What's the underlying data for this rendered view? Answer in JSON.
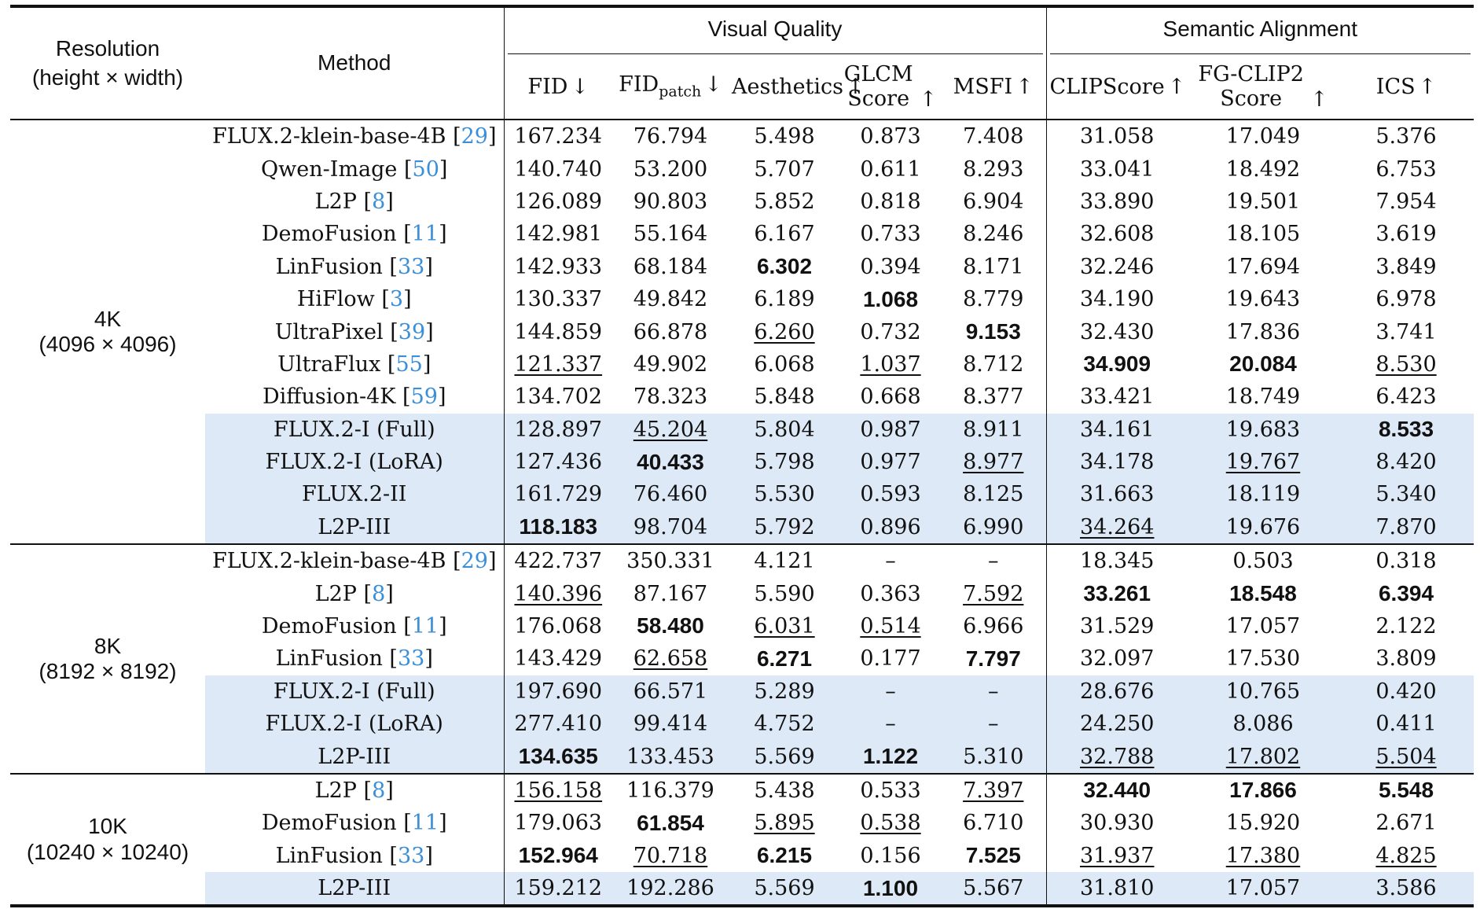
{
  "header": {
    "resolution_line1": "Resolution",
    "resolution_line2": "(height × width)",
    "method": "Method",
    "group_visual": "Visual Quality",
    "group_semantic": "Semantic Alignment",
    "columns": [
      {
        "pre": "FID",
        "sub": "",
        "arrow": "↓"
      },
      {
        "pre": "FID",
        "sub": "patch",
        "arrow": "↓"
      },
      {
        "pre": "Aesthetics",
        "sub": "",
        "arrow": "↑"
      },
      {
        "pre": "GLCM",
        "line2": "Score",
        "arrow": "↑"
      },
      {
        "pre": "MSFI",
        "sub": "",
        "arrow": "↑"
      },
      {
        "pre": "CLIPScore",
        "sub": "",
        "arrow": "↑"
      },
      {
        "pre": "FG-CLIP2",
        "line2": "Score",
        "arrow": "↑"
      },
      {
        "pre": "ICS",
        "sub": "",
        "arrow": "↑"
      }
    ]
  },
  "groups": [
    {
      "res_line1": "4K",
      "res_line2": "(4096 × 4096)",
      "rows": [
        {
          "method": "FLUX.2-klein-base-4B",
          "ref": "29",
          "hl": false,
          "vals": [
            "167.234",
            "76.794",
            "5.498",
            "0.873",
            "7.408",
            "31.058",
            "17.049",
            "5.376"
          ],
          "fmt": [
            "",
            "",
            "",
            "",
            "",
            "",
            "",
            ""
          ]
        },
        {
          "method": "Qwen-Image",
          "ref": "50",
          "hl": false,
          "vals": [
            "140.740",
            "53.200",
            "5.707",
            "0.611",
            "8.293",
            "33.041",
            "18.492",
            "6.753"
          ],
          "fmt": [
            "",
            "",
            "",
            "",
            "",
            "",
            "",
            ""
          ]
        },
        {
          "method": "L2P",
          "ref": "8",
          "hl": false,
          "vals": [
            "126.089",
            "90.803",
            "5.852",
            "0.818",
            "6.904",
            "33.890",
            "19.501",
            "7.954"
          ],
          "fmt": [
            "",
            "",
            "",
            "",
            "",
            "",
            "",
            ""
          ]
        },
        {
          "method": "DemoFusion",
          "ref": "11",
          "hl": false,
          "vals": [
            "142.981",
            "55.164",
            "6.167",
            "0.733",
            "8.246",
            "32.608",
            "18.105",
            "3.619"
          ],
          "fmt": [
            "",
            "",
            "",
            "",
            "",
            "",
            "",
            ""
          ]
        },
        {
          "method": "LinFusion",
          "ref": "33",
          "hl": false,
          "vals": [
            "142.933",
            "68.184",
            "6.302",
            "0.394",
            "8.171",
            "32.246",
            "17.694",
            "3.849"
          ],
          "fmt": [
            "",
            "",
            "b",
            "",
            "",
            "",
            "",
            ""
          ]
        },
        {
          "method": "HiFlow",
          "ref": "3",
          "hl": false,
          "vals": [
            "130.337",
            "49.842",
            "6.189",
            "1.068",
            "8.779",
            "34.190",
            "19.643",
            "6.978"
          ],
          "fmt": [
            "",
            "",
            "",
            "b",
            "",
            "",
            "",
            ""
          ]
        },
        {
          "method": "UltraPixel",
          "ref": "39",
          "hl": false,
          "vals": [
            "144.859",
            "66.878",
            "6.260",
            "0.732",
            "9.153",
            "32.430",
            "17.836",
            "3.741"
          ],
          "fmt": [
            "",
            "",
            "u",
            "",
            "b",
            "",
            "",
            ""
          ]
        },
        {
          "method": "UltraFlux",
          "ref": "55",
          "hl": false,
          "vals": [
            "121.337",
            "49.902",
            "6.068",
            "1.037",
            "8.712",
            "34.909",
            "20.084",
            "8.530"
          ],
          "fmt": [
            "u",
            "",
            "",
            "u",
            "",
            "b",
            "b",
            "u"
          ]
        },
        {
          "method": "Diffusion-4K",
          "ref": "59",
          "hl": false,
          "vals": [
            "134.702",
            "78.323",
            "5.848",
            "0.668",
            "8.377",
            "33.421",
            "18.749",
            "6.423"
          ],
          "fmt": [
            "",
            "",
            "",
            "",
            "",
            "",
            "",
            ""
          ]
        },
        {
          "method": "FLUX.2-I (Full)",
          "ref": "",
          "hl": true,
          "vals": [
            "128.897",
            "45.204",
            "5.804",
            "0.987",
            "8.911",
            "34.161",
            "19.683",
            "8.533"
          ],
          "fmt": [
            "",
            "u",
            "",
            "",
            "",
            "",
            "",
            "b"
          ]
        },
        {
          "method": "FLUX.2-I (LoRA)",
          "ref": "",
          "hl": true,
          "vals": [
            "127.436",
            "40.433",
            "5.798",
            "0.977",
            "8.977",
            "34.178",
            "19.767",
            "8.420"
          ],
          "fmt": [
            "",
            "b",
            "",
            "",
            "u",
            "",
            "u",
            ""
          ]
        },
        {
          "method": "FLUX.2-II",
          "ref": "",
          "hl": true,
          "vals": [
            "161.729",
            "76.460",
            "5.530",
            "0.593",
            "8.125",
            "31.663",
            "18.119",
            "5.340"
          ],
          "fmt": [
            "",
            "",
            "",
            "",
            "",
            "",
            "",
            ""
          ]
        },
        {
          "method": "L2P-III",
          "ref": "",
          "hl": true,
          "vals": [
            "118.183",
            "98.704",
            "5.792",
            "0.896",
            "6.990",
            "34.264",
            "19.676",
            "7.870"
          ],
          "fmt": [
            "b",
            "",
            "",
            "",
            "",
            "u",
            "",
            ""
          ]
        }
      ]
    },
    {
      "res_line1": "8K",
      "res_line2": "(8192 × 8192)",
      "rows": [
        {
          "method": "FLUX.2-klein-base-4B",
          "ref": "29",
          "hl": false,
          "vals": [
            "422.737",
            "350.331",
            "4.121",
            "–",
            "–",
            "18.345",
            "0.503",
            "0.318"
          ],
          "fmt": [
            "",
            "",
            "",
            "",
            "",
            "",
            "",
            ""
          ]
        },
        {
          "method": "L2P",
          "ref": "8",
          "hl": false,
          "vals": [
            "140.396",
            "87.167",
            "5.590",
            "0.363",
            "7.592",
            "33.261",
            "18.548",
            "6.394"
          ],
          "fmt": [
            "u",
            "",
            "",
            "",
            "u",
            "b",
            "b",
            "b"
          ]
        },
        {
          "method": "DemoFusion",
          "ref": "11",
          "hl": false,
          "vals": [
            "176.068",
            "58.480",
            "6.031",
            "0.514",
            "6.966",
            "31.529",
            "17.057",
            "2.122"
          ],
          "fmt": [
            "",
            "b",
            "u",
            "u",
            "",
            "",
            "",
            ""
          ]
        },
        {
          "method": "LinFusion",
          "ref": "33",
          "hl": false,
          "vals": [
            "143.429",
            "62.658",
            "6.271",
            "0.177",
            "7.797",
            "32.097",
            "17.530",
            "3.809"
          ],
          "fmt": [
            "",
            "u",
            "b",
            "",
            "b",
            "",
            "",
            ""
          ]
        },
        {
          "method": "FLUX.2-I (Full)",
          "ref": "",
          "hl": true,
          "vals": [
            "197.690",
            "66.571",
            "5.289",
            "–",
            "–",
            "28.676",
            "10.765",
            "0.420"
          ],
          "fmt": [
            "",
            "",
            "",
            "",
            "",
            "",
            "",
            ""
          ]
        },
        {
          "method": "FLUX.2-I (LoRA)",
          "ref": "",
          "hl": true,
          "vals": [
            "277.410",
            "99.414",
            "4.752",
            "–",
            "–",
            "24.250",
            "8.086",
            "0.411"
          ],
          "fmt": [
            "",
            "",
            "",
            "",
            "",
            "",
            "",
            ""
          ]
        },
        {
          "method": "L2P-III",
          "ref": "",
          "hl": true,
          "vals": [
            "134.635",
            "133.453",
            "5.569",
            "1.122",
            "5.310",
            "32.788",
            "17.802",
            "5.504"
          ],
          "fmt": [
            "b",
            "",
            "",
            "b",
            "",
            "u",
            "u",
            "u"
          ]
        }
      ]
    },
    {
      "res_line1": "10K",
      "res_line2": "(10240 × 10240)",
      "rows": [
        {
          "method": "L2P",
          "ref": "8",
          "hl": false,
          "vals": [
            "156.158",
            "116.379",
            "5.438",
            "0.533",
            "7.397",
            "32.440",
            "17.866",
            "5.548"
          ],
          "fmt": [
            "u",
            "",
            "",
            "",
            "u",
            "b",
            "b",
            "b"
          ]
        },
        {
          "method": "DemoFusion",
          "ref": "11",
          "hl": false,
          "vals": [
            "179.063",
            "61.854",
            "5.895",
            "0.538",
            "6.710",
            "30.930",
            "15.920",
            "2.671"
          ],
          "fmt": [
            "",
            "b",
            "u",
            "u",
            "",
            "",
            "",
            ""
          ]
        },
        {
          "method": "LinFusion",
          "ref": "33",
          "hl": false,
          "vals": [
            "152.964",
            "70.718",
            "6.215",
            "0.156",
            "7.525",
            "31.937",
            "17.380",
            "4.825"
          ],
          "fmt": [
            "b",
            "u",
            "b",
            "",
            "b",
            "u",
            "u",
            "u"
          ]
        },
        {
          "method": "L2P-III",
          "ref": "",
          "hl": true,
          "vals": [
            "159.212",
            "192.286",
            "5.569",
            "1.100",
            "5.567",
            "31.810",
            "17.057",
            "3.586"
          ],
          "fmt": [
            "",
            "",
            "",
            "b",
            "",
            "",
            "",
            ""
          ]
        }
      ]
    }
  ]
}
